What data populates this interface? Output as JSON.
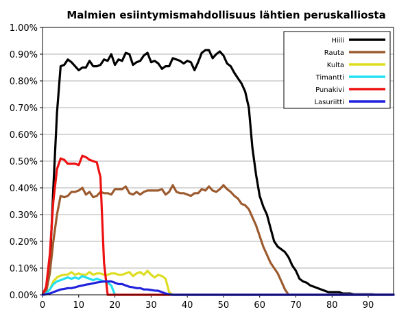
{
  "chart_data": {
    "type": "line",
    "title": "Malmien esiintymismahdollisuus lähtien peruskalliosta",
    "xlabel": "",
    "ylabel": "",
    "xlim": [
      0,
      97
    ],
    "ylim": [
      0,
      1.0
    ],
    "x_ticks": [
      0,
      10,
      20,
      30,
      40,
      50,
      60,
      70,
      80,
      90
    ],
    "y_ticks": [
      0,
      0.1,
      0.2,
      0.3,
      0.4,
      0.5,
      0.6,
      0.7,
      0.8,
      0.9,
      1.0
    ],
    "y_tick_labels": [
      "0.00%",
      "0.10%",
      "0.20%",
      "0.30%",
      "0.40%",
      "0.50%",
      "0.60%",
      "0.70%",
      "0.80%",
      "0.90%",
      "1.00%"
    ],
    "grid": "horizontal",
    "legend_position": "top-right",
    "series": [
      {
        "name": "Hiili",
        "color": "#000000",
        "x": [
          0,
          1,
          2,
          3,
          4,
          5,
          6,
          7,
          8,
          9,
          10,
          11,
          12,
          13,
          14,
          15,
          16,
          17,
          18,
          19,
          20,
          21,
          22,
          23,
          24,
          25,
          26,
          27,
          28,
          29,
          30,
          31,
          32,
          33,
          34,
          35,
          36,
          37,
          38,
          39,
          40,
          41,
          42,
          43,
          44,
          45,
          46,
          47,
          48,
          49,
          50,
          51,
          52,
          53,
          54,
          55,
          56,
          57,
          58,
          59,
          60,
          61,
          62,
          63,
          64,
          65,
          66,
          67,
          68,
          69,
          70,
          71,
          72,
          73,
          74,
          75,
          76,
          77,
          78,
          79,
          80,
          81,
          82,
          83,
          84,
          85,
          86,
          87,
          88,
          89,
          90,
          91,
          92,
          93,
          94,
          95,
          96,
          97
        ],
        "values": [
          0,
          0.02,
          0.1,
          0.4,
          0.68,
          0.855,
          0.86,
          0.88,
          0.87,
          0.855,
          0.84,
          0.85,
          0.85,
          0.875,
          0.855,
          0.855,
          0.86,
          0.88,
          0.875,
          0.9,
          0.86,
          0.88,
          0.875,
          0.905,
          0.9,
          0.86,
          0.87,
          0.875,
          0.895,
          0.905,
          0.87,
          0.875,
          0.865,
          0.845,
          0.855,
          0.855,
          0.885,
          0.88,
          0.875,
          0.865,
          0.875,
          0.87,
          0.84,
          0.87,
          0.905,
          0.915,
          0.915,
          0.885,
          0.9,
          0.91,
          0.895,
          0.865,
          0.855,
          0.83,
          0.81,
          0.79,
          0.76,
          0.7,
          0.55,
          0.45,
          0.37,
          0.33,
          0.3,
          0.25,
          0.2,
          0.18,
          0.17,
          0.16,
          0.14,
          0.11,
          0.09,
          0.06,
          0.05,
          0.045,
          0.035,
          0.03,
          0.025,
          0.02,
          0.015,
          0.01,
          0.01,
          0.01,
          0.01,
          0.005,
          0.005,
          0.005,
          0.002,
          0.002,
          0.002,
          0.002,
          0.002,
          0.002,
          0.001,
          0.001,
          0.001,
          0.001,
          0.001,
          0.001
        ]
      },
      {
        "name": "Rauta",
        "color": "#9c5a2e",
        "x": [
          0,
          1,
          2,
          3,
          4,
          5,
          6,
          7,
          8,
          9,
          10,
          11,
          12,
          13,
          14,
          15,
          16,
          17,
          18,
          19,
          20,
          21,
          22,
          23,
          24,
          25,
          26,
          27,
          28,
          29,
          30,
          31,
          32,
          33,
          34,
          35,
          36,
          37,
          38,
          39,
          40,
          41,
          42,
          43,
          44,
          45,
          46,
          47,
          48,
          49,
          50,
          51,
          52,
          53,
          54,
          55,
          56,
          57,
          58,
          59,
          60,
          61,
          62,
          63,
          64,
          65,
          66,
          67,
          68,
          97
        ],
        "values": [
          0,
          0.01,
          0.08,
          0.2,
          0.3,
          0.37,
          0.365,
          0.37,
          0.385,
          0.385,
          0.39,
          0.4,
          0.375,
          0.385,
          0.365,
          0.37,
          0.385,
          0.38,
          0.38,
          0.375,
          0.395,
          0.395,
          0.395,
          0.405,
          0.38,
          0.375,
          0.385,
          0.375,
          0.385,
          0.39,
          0.39,
          0.39,
          0.39,
          0.395,
          0.375,
          0.385,
          0.41,
          0.385,
          0.38,
          0.38,
          0.375,
          0.37,
          0.38,
          0.38,
          0.395,
          0.39,
          0.405,
          0.39,
          0.385,
          0.395,
          0.41,
          0.395,
          0.385,
          0.37,
          0.36,
          0.34,
          0.335,
          0.32,
          0.29,
          0.26,
          0.22,
          0.18,
          0.15,
          0.12,
          0.1,
          0.08,
          0.05,
          0.02,
          0,
          0
        ]
      },
      {
        "name": "Kulta",
        "color": "#dddd22",
        "x": [
          0,
          1,
          2,
          3,
          4,
          5,
          6,
          7,
          8,
          9,
          10,
          11,
          12,
          13,
          14,
          15,
          16,
          17,
          18,
          19,
          20,
          21,
          22,
          23,
          24,
          25,
          26,
          27,
          28,
          29,
          30,
          31,
          32,
          33,
          34,
          35,
          36,
          97
        ],
        "values": [
          0,
          0.005,
          0.02,
          0.05,
          0.065,
          0.072,
          0.075,
          0.076,
          0.085,
          0.075,
          0.08,
          0.075,
          0.075,
          0.085,
          0.075,
          0.08,
          0.08,
          0.075,
          0.075,
          0.08,
          0.08,
          0.075,
          0.075,
          0.08,
          0.085,
          0.07,
          0.08,
          0.085,
          0.075,
          0.09,
          0.075,
          0.065,
          0.075,
          0.07,
          0.06,
          0.01,
          0,
          0
        ]
      },
      {
        "name": "Timantti",
        "color": "#22e0f0",
        "x": [
          0,
          1,
          2,
          3,
          4,
          5,
          6,
          7,
          8,
          9,
          10,
          11,
          12,
          13,
          14,
          15,
          16,
          17,
          18,
          19,
          20,
          97
        ],
        "values": [
          0,
          0.005,
          0.02,
          0.04,
          0.05,
          0.055,
          0.06,
          0.065,
          0.06,
          0.065,
          0.06,
          0.07,
          0.065,
          0.06,
          0.055,
          0.06,
          0.055,
          0.05,
          0.045,
          0.035,
          0,
          0
        ]
      },
      {
        "name": "Punakivi",
        "color": "#ee1111",
        "x": [
          0,
          1,
          2,
          3,
          4,
          5,
          6,
          7,
          8,
          9,
          10,
          11,
          12,
          13,
          14,
          15,
          16,
          17,
          18,
          19,
          20,
          97
        ],
        "values": [
          0,
          0.03,
          0.15,
          0.35,
          0.47,
          0.51,
          0.505,
          0.49,
          0.49,
          0.49,
          0.485,
          0.52,
          0.515,
          0.505,
          0.5,
          0.495,
          0.44,
          0.12,
          0,
          0,
          0,
          0
        ]
      },
      {
        "name": "Lasuriitti",
        "color": "#2222dd",
        "x": [
          0,
          1,
          2,
          3,
          4,
          5,
          6,
          7,
          8,
          9,
          10,
          11,
          12,
          13,
          14,
          15,
          16,
          17,
          18,
          19,
          20,
          21,
          22,
          23,
          24,
          25,
          26,
          27,
          28,
          29,
          30,
          31,
          32,
          33,
          34,
          35,
          36,
          97
        ],
        "values": [
          0,
          0.002,
          0.005,
          0.01,
          0.015,
          0.02,
          0.022,
          0.025,
          0.025,
          0.028,
          0.032,
          0.035,
          0.038,
          0.04,
          0.043,
          0.046,
          0.048,
          0.05,
          0.05,
          0.05,
          0.045,
          0.04,
          0.04,
          0.035,
          0.03,
          0.028,
          0.025,
          0.025,
          0.02,
          0.02,
          0.018,
          0.016,
          0.015,
          0.01,
          0.005,
          0.002,
          0,
          0
        ]
      }
    ]
  }
}
